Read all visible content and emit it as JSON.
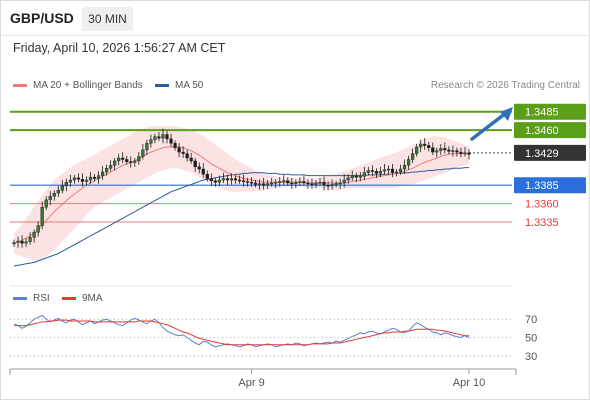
{
  "header": {
    "pair": "GBP/USD",
    "timeframe": "30 MIN"
  },
  "timestamp": "Friday, April 10, 2026 1:56:27 AM CET",
  "credit": "Research © 2026 Trading Central",
  "colors": {
    "resistance": "#5a9e1a",
    "support_box": "#2a6fdb",
    "support_line": "#e77a7a",
    "ma20": "#f07a7a",
    "ma50": "#2e5c99",
    "bb_fill": "#fcdede",
    "rsi": "#5b80d6",
    "rsi_ma": "#e53935",
    "arrow": "#2e6fb8"
  },
  "chart_data": [
    {
      "type": "line",
      "title": "GBP/USD",
      "legend": [
        {
          "label": "MA 20 + Bollinger Bands",
          "color": "#f07a7a"
        },
        {
          "label": "MA 50",
          "color": "#2e5c99"
        }
      ],
      "ylim": [
        1.3256,
        1.3505
      ],
      "xticks": [
        {
          "label": "Apr 9",
          "bar": 59
        },
        {
          "label": "Apr 10",
          "bar": 113
        }
      ],
      "levels": [
        {
          "label": "1.3485",
          "value": 1.3485,
          "kind": "resistance"
        },
        {
          "label": "1.3460",
          "value": 1.346,
          "kind": "resistance"
        },
        {
          "label": "1.3429",
          "value": 1.3429,
          "kind": "last"
        },
        {
          "label": "1.3385",
          "value": 1.3385,
          "kind": "support_box"
        },
        {
          "label": "1.3360",
          "value": 1.336,
          "kind": "support"
        },
        {
          "label": "1.3335",
          "value": 1.3335,
          "kind": "support"
        }
      ],
      "candles_close": [
        1.3307,
        1.3309,
        1.3306,
        1.3308,
        1.3314,
        1.3321,
        1.333,
        1.3355,
        1.3365,
        1.337,
        1.3374,
        1.3378,
        1.3384,
        1.3389,
        1.3392,
        1.3395,
        1.3393,
        1.339,
        1.3392,
        1.3396,
        1.3394,
        1.3398,
        1.3403,
        1.3408,
        1.3412,
        1.3418,
        1.3422,
        1.342,
        1.3417,
        1.3416,
        1.3418,
        1.3424,
        1.3433,
        1.3442,
        1.3447,
        1.3451,
        1.3449,
        1.3454,
        1.3448,
        1.3442,
        1.3436,
        1.343,
        1.3428,
        1.3422,
        1.3418,
        1.341,
        1.3407,
        1.34,
        1.3394,
        1.3391,
        1.3389,
        1.3392,
        1.3394,
        1.3392,
        1.3394,
        1.3392,
        1.3391,
        1.339,
        1.3389,
        1.3388,
        1.3386,
        1.3387,
        1.3385,
        1.3387,
        1.3388,
        1.3389,
        1.339,
        1.3391,
        1.3388,
        1.3387,
        1.3389,
        1.339,
        1.3388,
        1.3387,
        1.3386,
        1.3388,
        1.3389,
        1.3385,
        1.3384,
        1.3386,
        1.3387,
        1.3388,
        1.3392,
        1.3395,
        1.3398,
        1.3396,
        1.3397,
        1.3402,
        1.3405,
        1.3404,
        1.3401,
        1.3404,
        1.3406,
        1.3407,
        1.3402,
        1.3403,
        1.3407,
        1.3412,
        1.342,
        1.3428,
        1.3437,
        1.3441,
        1.3439,
        1.3436,
        1.343,
        1.3432,
        1.3435,
        1.3433,
        1.3431,
        1.3432,
        1.343,
        1.3428,
        1.3429,
        1.3427
      ],
      "ma20": [
        1.3306,
        1.3308,
        1.331,
        1.3313,
        1.3316,
        1.332,
        1.3325,
        1.3331,
        1.3337,
        1.3343,
        1.3349,
        1.3354,
        1.3359,
        1.3364,
        1.3369,
        1.3373,
        1.3377,
        1.3381,
        1.3385,
        1.3388,
        1.3391,
        1.3394,
        1.3397,
        1.34,
        1.3403,
        1.3406,
        1.3409,
        1.3412,
        1.3414,
        1.3416,
        1.3418,
        1.3421,
        1.3424,
        1.3427,
        1.343,
        1.3432,
        1.3434,
        1.3436,
        1.3437,
        1.3437,
        1.3437,
        1.3437,
        1.3436,
        1.3434,
        1.3432,
        1.3429,
        1.3426,
        1.3422,
        1.3418,
        1.3414,
        1.3411,
        1.3408,
        1.3405,
        1.3402,
        1.34,
        1.3398,
        1.3396,
        1.3394,
        1.3393,
        1.3392,
        1.3391,
        1.339,
        1.3389,
        1.3389,
        1.3389,
        1.3389,
        1.3389,
        1.3389,
        1.3389,
        1.3389,
        1.3389,
        1.3389,
        1.3389,
        1.3388,
        1.3388,
        1.3388,
        1.3388,
        1.3388,
        1.3388,
        1.3388,
        1.3388,
        1.3388,
        1.3388,
        1.3389,
        1.339,
        1.3391,
        1.3392,
        1.3393,
        1.3394,
        1.3395,
        1.3396,
        1.3397,
        1.3398,
        1.3399,
        1.34,
        1.3401,
        1.3402,
        1.3404,
        1.3406,
        1.3408,
        1.3411,
        1.3414,
        1.3416,
        1.3418,
        1.342,
        1.3422,
        1.3424,
        1.3426,
        1.3427,
        1.3428,
        1.3428,
        1.3428,
        1.3428,
        1.3427
      ],
      "bb_upper": [
        1.332,
        1.3325,
        1.3332,
        1.334,
        1.3348,
        1.3356,
        1.3364,
        1.3372,
        1.3379,
        1.3386,
        1.3392,
        1.3397,
        1.3401,
        1.3405,
        1.3409,
        1.3412,
        1.3415,
        1.3418,
        1.3421,
        1.3424,
        1.3427,
        1.343,
        1.3433,
        1.3436,
        1.3439,
        1.3442,
        1.3445,
        1.3448,
        1.3451,
        1.3454,
        1.3457,
        1.346,
        1.3462,
        1.3464,
        1.3465,
        1.3466,
        1.3466,
        1.3466,
        1.3466,
        1.3466,
        1.3465,
        1.3464,
        1.3463,
        1.3462,
        1.346,
        1.3458,
        1.3455,
        1.3452,
        1.3448,
        1.3444,
        1.344,
        1.3436,
        1.3432,
        1.3428,
        1.3424,
        1.342,
        1.3417,
        1.3414,
        1.3411,
        1.3408,
        1.3405,
        1.3403,
        1.3401,
        1.3399,
        1.3398,
        1.3397,
        1.3396,
        1.3395,
        1.3395,
        1.3395,
        1.3395,
        1.3395,
        1.3395,
        1.3395,
        1.3395,
        1.3395,
        1.3396,
        1.3397,
        1.3398,
        1.3399,
        1.34,
        1.3402,
        1.3404,
        1.3406,
        1.3408,
        1.341,
        1.3412,
        1.3414,
        1.3416,
        1.3418,
        1.342,
        1.3422,
        1.3424,
        1.3426,
        1.3428,
        1.343,
        1.3432,
        1.3434,
        1.3437,
        1.344,
        1.3443,
        1.3446,
        1.3449,
        1.3451,
        1.3452,
        1.3452,
        1.3451,
        1.345,
        1.3448,
        1.3446,
        1.3444,
        1.3442,
        1.344,
        1.3438
      ],
      "bb_lower": [
        1.3292,
        1.329,
        1.3288,
        1.3286,
        1.3284,
        1.3283,
        1.3283,
        1.3285,
        1.3288,
        1.3292,
        1.3297,
        1.3302,
        1.3308,
        1.3314,
        1.332,
        1.3326,
        1.3332,
        1.3338,
        1.3344,
        1.335,
        1.3355,
        1.3359,
        1.3362,
        1.3365,
        1.3368,
        1.3371,
        1.3374,
        1.3377,
        1.338,
        1.3383,
        1.3386,
        1.3389,
        1.3392,
        1.3395,
        1.3398,
        1.3401,
        1.3403,
        1.3405,
        1.3407,
        1.3408,
        1.3408,
        1.3407,
        1.3406,
        1.3404,
        1.3402,
        1.3399,
        1.3396,
        1.3393,
        1.339,
        1.3387,
        1.3384,
        1.3381,
        1.3379,
        1.3377,
        1.3376,
        1.3376,
        1.3376,
        1.3376,
        1.3376,
        1.3376,
        1.3377,
        1.3377,
        1.3378,
        1.3379,
        1.338,
        1.3381,
        1.3382,
        1.3383,
        1.3383,
        1.3383,
        1.3383,
        1.3383,
        1.3383,
        1.3382,
        1.3382,
        1.3382,
        1.3381,
        1.338,
        1.3379,
        1.3378,
        1.3378,
        1.3378,
        1.3379,
        1.338,
        1.3381,
        1.3381,
        1.3381,
        1.3381,
        1.3381,
        1.3381,
        1.3381,
        1.3381,
        1.3381,
        1.3381,
        1.3381,
        1.3382,
        1.3383,
        1.3384,
        1.3385,
        1.3386,
        1.3388,
        1.339,
        1.3392,
        1.3394,
        1.3396,
        1.3398,
        1.34,
        1.3402,
        1.3404,
        1.3406,
        1.3408,
        1.341,
        1.3412,
        1.3414
      ],
      "ma50": [
        1.3275,
        1.3276,
        1.3277,
        1.3278,
        1.3279,
        1.328,
        1.3282,
        1.3284,
        1.3286,
        1.3288,
        1.329,
        1.3292,
        1.3295,
        1.3298,
        1.3301,
        1.3304,
        1.3307,
        1.331,
        1.3313,
        1.3316,
        1.3319,
        1.3322,
        1.3325,
        1.3328,
        1.3331,
        1.3334,
        1.3337,
        1.334,
        1.3343,
        1.3346,
        1.3349,
        1.3352,
        1.3355,
        1.3358,
        1.3361,
        1.3364,
        1.3367,
        1.337,
        1.3373,
        1.3376,
        1.3378,
        1.338,
        1.3382,
        1.3384,
        1.3386,
        1.3388,
        1.339,
        1.3392,
        1.3393,
        1.3394,
        1.3395,
        1.3396,
        1.3397,
        1.3398,
        1.3399,
        1.34,
        1.34,
        1.3401,
        1.3401,
        1.3402,
        1.3402,
        1.3402,
        1.3402,
        1.3401,
        1.3401,
        1.3401,
        1.34,
        1.34,
        1.34,
        1.3399,
        1.3399,
        1.3399,
        1.3399,
        1.3398,
        1.3398,
        1.3398,
        1.3398,
        1.3398,
        1.3398,
        1.3398,
        1.3398,
        1.3398,
        1.3398,
        1.3398,
        1.3398,
        1.3398,
        1.3398,
        1.3398,
        1.3399,
        1.3399,
        1.3399,
        1.3399,
        1.34,
        1.34,
        1.34,
        1.3401,
        1.3401,
        1.3402,
        1.3402,
        1.3403,
        1.3403,
        1.3404,
        1.3404,
        1.3405,
        1.3405,
        1.3406,
        1.3406,
        1.3407,
        1.3407,
        1.3408,
        1.3408,
        1.3408,
        1.3409,
        1.3409
      ]
    },
    {
      "type": "line",
      "title": "RSI",
      "legend": [
        {
          "label": "RSI",
          "color": "#5b80d6"
        },
        {
          "label": "9MA",
          "color": "#e53935"
        }
      ],
      "ylim": [
        20,
        80
      ],
      "yticks": [
        70,
        50,
        30
      ],
      "series": [
        {
          "name": "RSI",
          "values": [
            65,
            63,
            60,
            62,
            66,
            70,
            72,
            74,
            70,
            67,
            69,
            71,
            68,
            66,
            69,
            70,
            67,
            64,
            66,
            68,
            65,
            67,
            69,
            70,
            68,
            66,
            64,
            63,
            66,
            69,
            71,
            69,
            67,
            65,
            68,
            70,
            66,
            61,
            57,
            55,
            53,
            52,
            53,
            50,
            47,
            44,
            42,
            46,
            45,
            42,
            40,
            41,
            42,
            43,
            42,
            41,
            40,
            41,
            43,
            42,
            40,
            41,
            42,
            43,
            42,
            40,
            41,
            42,
            43,
            42,
            44,
            43,
            41,
            42,
            43,
            44,
            43,
            44,
            45,
            44,
            46,
            45,
            47,
            49,
            51,
            53,
            55,
            54,
            56,
            57,
            55,
            54,
            56,
            58,
            60,
            59,
            56,
            55,
            57,
            62,
            66,
            64,
            61,
            59,
            56,
            55,
            53,
            55,
            54,
            52,
            51,
            50,
            52,
            50
          ]
        },
        {
          "name": "9MA",
          "values": [
            63,
            63,
            63,
            63,
            64,
            65,
            66,
            67,
            67,
            68,
            68,
            69,
            69,
            69,
            68,
            68,
            68,
            68,
            68,
            68,
            67,
            67,
            67,
            67,
            67,
            67,
            67,
            67,
            67,
            67,
            67,
            68,
            68,
            68,
            68,
            67,
            66,
            65,
            64,
            62,
            60,
            58,
            56,
            55,
            53,
            51,
            49,
            48,
            47,
            46,
            45,
            44,
            43,
            42,
            42,
            42,
            42,
            42,
            42,
            42,
            42,
            42,
            42,
            42,
            42,
            42,
            42,
            42,
            42,
            42,
            42,
            42,
            42,
            42,
            43,
            43,
            43,
            43,
            43,
            44,
            44,
            44,
            45,
            46,
            47,
            48,
            49,
            50,
            51,
            52,
            53,
            54,
            55,
            55,
            56,
            56,
            56,
            57,
            57,
            58,
            59,
            59,
            59,
            59,
            59,
            58,
            58,
            57,
            56,
            55,
            54,
            53,
            52,
            52
          ]
        }
      ]
    }
  ]
}
